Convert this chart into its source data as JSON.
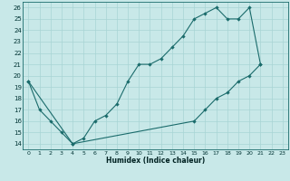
{
  "xlabel": "Humidex (Indice chaleur)",
  "bg_color": "#c8e8e8",
  "line_color": "#1a6b6b",
  "grid_color": "#a8d4d4",
  "xlim": [
    -0.5,
    23.5
  ],
  "ylim": [
    13.5,
    26.5
  ],
  "xticks": [
    0,
    1,
    2,
    3,
    4,
    5,
    6,
    7,
    8,
    9,
    10,
    11,
    12,
    13,
    14,
    15,
    16,
    17,
    18,
    19,
    20,
    21,
    22,
    23
  ],
  "yticks": [
    14,
    15,
    16,
    17,
    18,
    19,
    20,
    21,
    22,
    23,
    24,
    25,
    26
  ],
  "line1_x": [
    0,
    1,
    2,
    3,
    4,
    5,
    6,
    7,
    8,
    9,
    10,
    11,
    12,
    13,
    14,
    15,
    16,
    17,
    18,
    19,
    20,
    21
  ],
  "line1_y": [
    19.5,
    17.0,
    16.0,
    15.0,
    14.0,
    14.5,
    16.0,
    16.5,
    17.5,
    19.5,
    21.0,
    21.0,
    21.5,
    22.5,
    23.5,
    25.0,
    25.5,
    26.0,
    25.0,
    25.0,
    26.0,
    21.0
  ],
  "line2_x": [
    0,
    4,
    15,
    16,
    17,
    18,
    19,
    20,
    21
  ],
  "line2_y": [
    19.5,
    14.0,
    16.0,
    17.0,
    18.0,
    18.5,
    19.5,
    20.0,
    21.0
  ]
}
